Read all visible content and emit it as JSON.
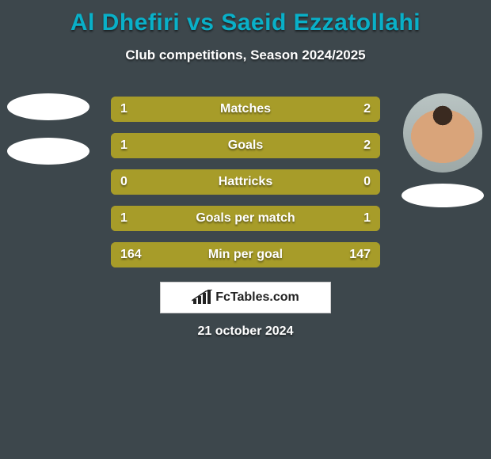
{
  "background_color": "#3d474c",
  "title": {
    "text": "Al Dhefiri vs Saeid Ezzatollahi",
    "color": "#09b0c8",
    "fontsize": 30
  },
  "subtitle": {
    "text": "Club competitions, Season 2024/2025",
    "fontsize": 17
  },
  "player_left": {
    "has_photo": false,
    "show_name_ellipse": true
  },
  "player_right": {
    "has_photo": true,
    "show_name_ellipse": true
  },
  "stats": {
    "left_color": "#a79c29",
    "right_color": "#a79c29",
    "row_bg": "#a79c29",
    "rows": [
      {
        "label": "Matches",
        "left": "1",
        "right": "2",
        "left_pct": 33,
        "right_pct": 67
      },
      {
        "label": "Goals",
        "left": "1",
        "right": "2",
        "left_pct": 33,
        "right_pct": 67
      },
      {
        "label": "Hattricks",
        "left": "0",
        "right": "0",
        "left_pct": 50,
        "right_pct": 50
      },
      {
        "label": "Goals per match",
        "left": "1",
        "right": "1",
        "left_pct": 50,
        "right_pct": 50
      },
      {
        "label": "Min per goal",
        "left": "164",
        "right": "147",
        "left_pct": 53,
        "right_pct": 47
      }
    ]
  },
  "brand": {
    "text": "FcTables.com"
  },
  "date": "21 october 2024"
}
